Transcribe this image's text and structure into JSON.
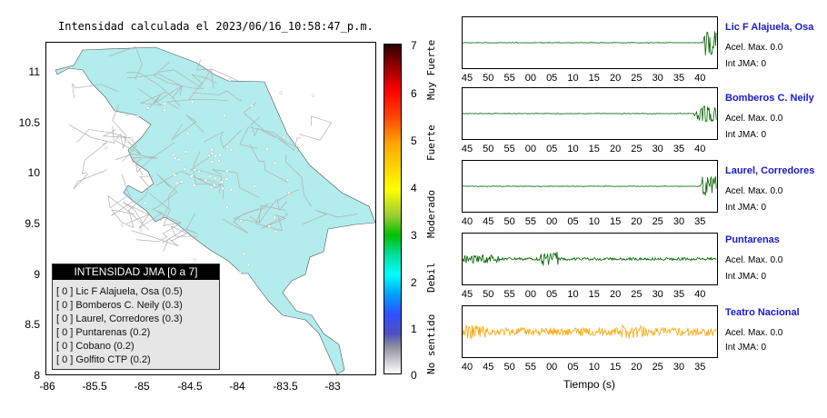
{
  "title": "Intensidad calculada el 2023/06/16_10:58:47_p.m.",
  "map": {
    "yticks": [
      "11",
      "10.5",
      "10",
      "9.5",
      "9",
      "8.5",
      "8"
    ],
    "xticks": [
      "-86",
      "-85.5",
      "-85",
      "-84.5",
      "-84",
      "-83.5",
      "-83"
    ],
    "land_color": "#b2ecec",
    "road_color": "#b0b0b0"
  },
  "colorbar": {
    "ticks": [
      "7",
      "6",
      "5",
      "4",
      "3",
      "2",
      "1",
      "0"
    ],
    "categories": [
      "Muy Fuerte",
      "Fuerte",
      "Moderado",
      "Debil",
      "No sentido"
    ]
  },
  "legend": {
    "header": "INTENSIDAD JMA [0 a 7]",
    "items": [
      {
        "text": "[ 0 ]  Lic F Alajuela, Osa (0.5)"
      },
      {
        "text": "[ 0 ]  Bomberos C. Neily (0.3)"
      },
      {
        "text": "[ 0 ]  Laurel, Corredores (0.3)"
      },
      {
        "text": "[ 0 ]  Puntarenas (0.2)"
      },
      {
        "text": "[ 0 ]  Cobano (0.2)"
      },
      {
        "text": "[ 0 ]  Golfito CTP (0.2)"
      }
    ]
  },
  "stations": [
    {
      "name": "Lic F Alajuela, Osa",
      "acel": "Acel. Max. 0.0",
      "int": "Int JMA: 0",
      "ticks": [
        "45",
        "50",
        "55",
        "00",
        "05",
        "10",
        "15",
        "20",
        "25",
        "30",
        "35",
        "40"
      ],
      "color": "#006400"
    },
    {
      "name": "Bomberos C. Neily",
      "acel": "Acel. Max. 0.0",
      "int": "Int JMA: 0",
      "ticks": [
        "45",
        "50",
        "55",
        "00",
        "05",
        "10",
        "15",
        "20",
        "25",
        "30",
        "35",
        "40"
      ],
      "color": "#006400"
    },
    {
      "name": "Laurel, Corredores",
      "acel": "Acel. Max. 0.0",
      "int": "Int JMA: 0",
      "ticks": [
        "40",
        "45",
        "50",
        "55",
        "00",
        "05",
        "10",
        "15",
        "20",
        "25",
        "30",
        "35"
      ],
      "color": "#006400"
    },
    {
      "name": "Puntarenas",
      "acel": "Acel. Max. 0.0",
      "int": "Int JMA: 0",
      "ticks": [
        "45",
        "50",
        "55",
        "00",
        "05",
        "10",
        "15",
        "20",
        "25",
        "30",
        "35",
        "40"
      ],
      "color": "#006400"
    },
    {
      "name": "Teatro Nacional",
      "acel": "Acel. Max. 0.0",
      "int": "Int JMA: 0",
      "ticks": [
        "40",
        "45",
        "50",
        "55",
        "00",
        "05",
        "10",
        "15",
        "20",
        "25",
        "30",
        "35"
      ],
      "color": "#ffa500"
    }
  ],
  "xaxis_label": "Tiempo (s)"
}
